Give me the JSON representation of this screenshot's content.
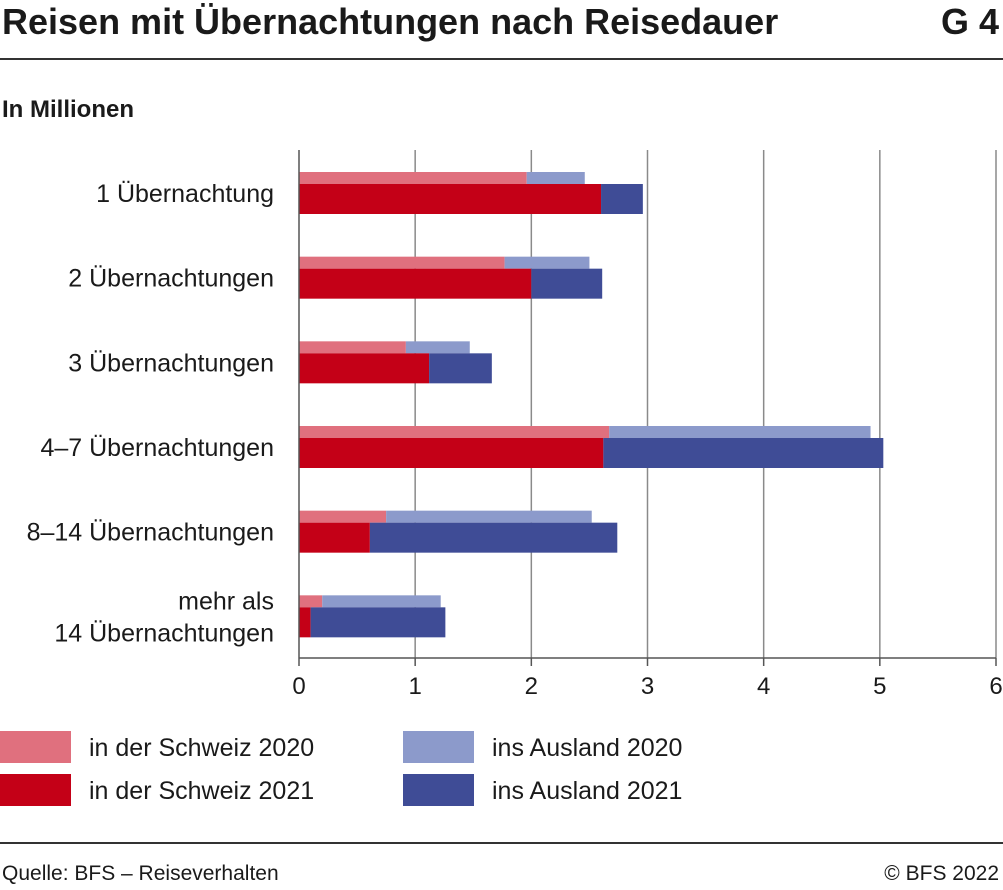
{
  "header": {
    "title": "Reisen mit Übernachtungen nach Reisedauer",
    "chart_id": "G 4",
    "subtitle": "In Millionen"
  },
  "footer": {
    "source": "Quelle: BFS – Reiseverhalten",
    "copyright": "© BFS 2022"
  },
  "chart_data": {
    "type": "bar",
    "orientation": "horizontal",
    "stacked": true,
    "title": "Reisen mit Übernachtungen nach Reisedauer",
    "unit_label": "In Millionen",
    "categories": [
      [
        "1 Übernachtung"
      ],
      [
        "2 Übernachtungen"
      ],
      [
        "3 Übernachtungen"
      ],
      [
        "4–7 Übernachtungen"
      ],
      [
        "8–14 Übernachtungen"
      ],
      [
        "mehr als",
        "14 Übernachtungen"
      ]
    ],
    "x_ticks": [
      "0",
      "1",
      "2",
      "3",
      "4",
      "5",
      "6"
    ],
    "xlim": [
      0,
      6
    ],
    "grid": true,
    "legend_position": "bottom",
    "years": [
      {
        "year": "2020",
        "series": [
          {
            "name": "in der Schweiz 2020",
            "color": "#e0707e",
            "values": [
              1.96,
              1.77,
              0.92,
              2.67,
              0.75,
              0.2
            ]
          },
          {
            "name": "ins Ausland 2020",
            "color": "#8c9acb",
            "values": [
              0.5,
              0.73,
              0.55,
              2.25,
              1.77,
              1.02
            ]
          }
        ]
      },
      {
        "year": "2021",
        "series": [
          {
            "name": "in der Schweiz 2021",
            "color": "#c40017",
            "values": [
              2.6,
              2.0,
              1.12,
              2.62,
              0.61,
              0.1
            ]
          },
          {
            "name": "ins Ausland 2021",
            "color": "#3f4c96",
            "values": [
              0.36,
              0.61,
              0.54,
              2.41,
              2.13,
              1.16
            ]
          }
        ]
      }
    ]
  }
}
